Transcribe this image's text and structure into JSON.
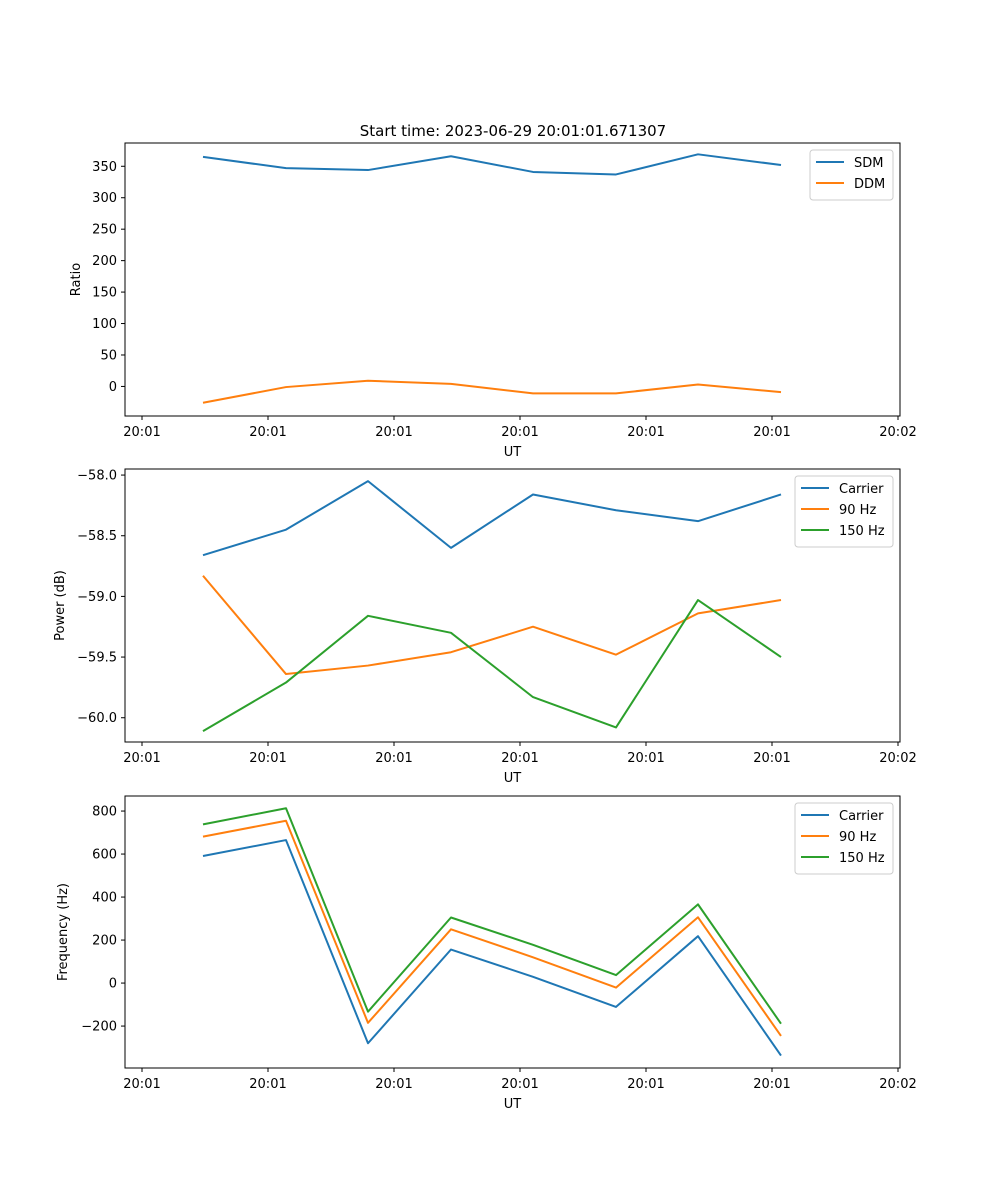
{
  "figure": {
    "title": "Start time: 2023-06-29 20:01:01.671307"
  },
  "chart_data": [
    {
      "type": "line",
      "xlabel": "UT",
      "ylabel": "Ratio",
      "x_tick_labels": [
        "20:01",
        "20:01",
        "20:01",
        "20:01",
        "20:01",
        "20:01",
        "20:02"
      ],
      "ylim": [
        -47,
        387
      ],
      "yticks": [
        0,
        50,
        100,
        150,
        200,
        250,
        300,
        350
      ],
      "ytick_labels": [
        "0",
        "50",
        "100",
        "150",
        "200",
        "250",
        "300",
        "350"
      ],
      "legend": "top-right",
      "series": [
        {
          "name": "SDM",
          "color": "#1f77b4",
          "values": [
            365,
            347,
            344,
            366,
            341,
            337,
            369,
            352
          ]
        },
        {
          "name": "DDM",
          "color": "#ff7f0e",
          "values": [
            -26,
            -1,
            9,
            4,
            -11,
            -11,
            3,
            -9
          ]
        }
      ]
    },
    {
      "type": "line",
      "xlabel": "UT",
      "ylabel": "Power (dB)",
      "x_tick_labels": [
        "20:01",
        "20:01",
        "20:01",
        "20:01",
        "20:01",
        "20:01",
        "20:02"
      ],
      "ylim": [
        -60.2,
        -57.95
      ],
      "yticks": [
        -60.0,
        -59.5,
        -59.0,
        -58.5,
        -58.0
      ],
      "ytick_labels": [
        "−60.0",
        "−59.5",
        "−59.0",
        "−58.5",
        "−58.0"
      ],
      "legend": "top-right",
      "series": [
        {
          "name": "Carrier",
          "color": "#1f77b4",
          "values": [
            -58.66,
            -58.45,
            -58.05,
            -58.6,
            -58.16,
            -58.29,
            -58.38,
            -58.16
          ]
        },
        {
          "name": "90 Hz",
          "color": "#ff7f0e",
          "values": [
            -58.83,
            -59.64,
            -59.57,
            -59.46,
            -59.25,
            -59.48,
            -59.14,
            -59.03
          ]
        },
        {
          "name": "150 Hz",
          "color": "#2ca02c",
          "values": [
            -60.11,
            -59.71,
            -59.16,
            -59.3,
            -59.83,
            -60.08,
            -59.03,
            -59.5
          ]
        }
      ]
    },
    {
      "type": "line",
      "xlabel": "UT",
      "ylabel": "Frequency (Hz)",
      "x_tick_labels": [
        "20:01",
        "20:01",
        "20:01",
        "20:01",
        "20:01",
        "20:01",
        "20:02"
      ],
      "ylim": [
        -395,
        870
      ],
      "yticks": [
        -200,
        0,
        200,
        400,
        600,
        800
      ],
      "ytick_labels": [
        "−200",
        "0",
        "200",
        "400",
        "600",
        "800"
      ],
      "legend": "top-right",
      "series": [
        {
          "name": "Carrier",
          "color": "#1f77b4",
          "values": [
            591,
            665,
            -280,
            156,
            29,
            -111,
            218,
            -337
          ]
        },
        {
          "name": "90 Hz",
          "color": "#ff7f0e",
          "values": [
            681,
            755,
            -185,
            250,
            120,
            -21,
            306,
            -246
          ]
        },
        {
          "name": "150 Hz",
          "color": "#2ca02c",
          "values": [
            738,
            813,
            -133,
            305,
            178,
            37,
            366,
            -189
          ]
        }
      ]
    }
  ]
}
